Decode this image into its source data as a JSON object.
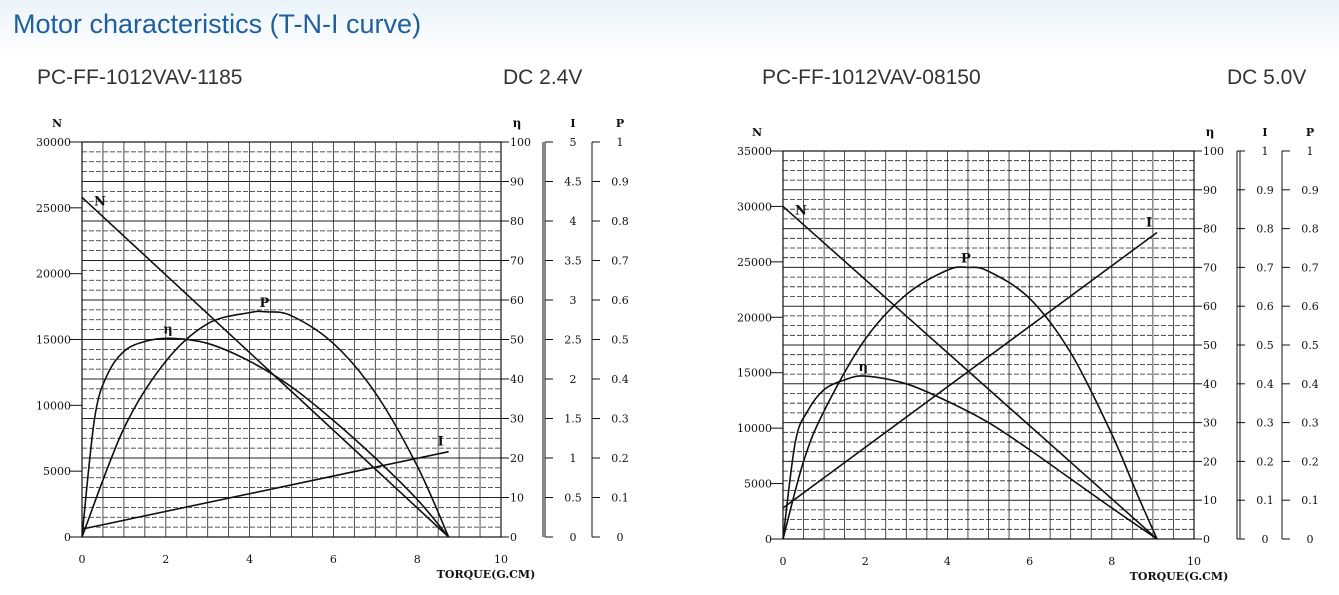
{
  "page": {
    "title": "Motor characteristics (T-N-I curve)"
  },
  "charts": [
    {
      "model": "PC-FF-1012VAV-1185",
      "voltage": "DC 2.4V"
    },
    {
      "model": "PC-FF-1012VAV-08150",
      "voltage": "DC 5.0V"
    }
  ],
  "chart_data": [
    {
      "type": "line",
      "title": "PC-FF-1012VAV-1185",
      "subtitle": "DC 2.4V",
      "xlabel": "TORQUE(G.CM)",
      "x_ticks": [
        0,
        2,
        4,
        6,
        8,
        10
      ],
      "xlim": [
        0,
        10
      ],
      "axes": {
        "N": {
          "label": "N",
          "ticks": [
            0,
            5000,
            10000,
            15000,
            20000,
            25000,
            30000
          ],
          "ylim": [
            0,
            30000
          ]
        },
        "eta": {
          "label": "η",
          "ticks": [
            "0",
            "10",
            "20",
            "30",
            "40",
            "50",
            "60",
            "70",
            "80",
            "90",
            "100"
          ],
          "ylim": [
            0,
            100
          ]
        },
        "I": {
          "label": "I",
          "ticks": [
            "0",
            "0.5",
            "1",
            "1.5",
            "2",
            "2.5",
            "3",
            "3.5",
            "4",
            "4.5",
            "5"
          ],
          "ylim": [
            0,
            5
          ]
        },
        "P": {
          "label": "P",
          "ticks": [
            "0",
            "0.1",
            "0.2",
            "0.3",
            "0.4",
            "0.5",
            "0.6",
            "0.7",
            "0.8",
            "0.9",
            "1"
          ],
          "ylim": [
            0,
            1
          ]
        }
      },
      "series": [
        {
          "name": "N",
          "axis": "N",
          "x": [
            0,
            8.75
          ],
          "y": [
            25800,
            0
          ]
        },
        {
          "name": "η",
          "axis": "eta",
          "x": [
            0,
            0.3,
            0.6,
            1.0,
            1.5,
            2.1,
            3.0,
            4.0,
            5.0,
            6.0,
            7.0,
            8.0,
            8.75
          ],
          "y": [
            0,
            30,
            41,
            47,
            49.5,
            50.3,
            49,
            44.5,
            38,
            29.5,
            20,
            9.5,
            0
          ]
        },
        {
          "name": "P",
          "axis": "P",
          "x": [
            0,
            1.0,
            2.0,
            3.0,
            4.0,
            4.4,
            5.0,
            6.0,
            7.0,
            8.0,
            8.75
          ],
          "y": [
            0,
            0.275,
            0.445,
            0.54,
            0.568,
            0.57,
            0.56,
            0.49,
            0.365,
            0.18,
            0
          ]
        },
        {
          "name": "I",
          "axis": "I",
          "x": [
            0,
            8.75
          ],
          "y": [
            0.1,
            1.08
          ]
        }
      ]
    },
    {
      "type": "line",
      "title": "PC-FF-1012VAV-08150",
      "subtitle": "DC 5.0V",
      "xlabel": "TORQUE(G.CM)",
      "x_ticks": [
        0,
        2,
        4,
        6,
        8,
        10
      ],
      "xlim": [
        0,
        10
      ],
      "axes": {
        "N": {
          "label": "N",
          "ticks": [
            0,
            5000,
            10000,
            15000,
            20000,
            25000,
            30000,
            35000
          ],
          "ylim": [
            0,
            35000
          ]
        },
        "eta": {
          "label": "η",
          "ticks": [
            "0",
            "10",
            "20",
            "30",
            "40",
            "50",
            "60",
            "70",
            "80",
            "90",
            "100"
          ],
          "ylim": [
            0,
            100
          ]
        },
        "I": {
          "label": "I",
          "ticks": [
            "0",
            "0.1",
            "0.2",
            "0.3",
            "0.4",
            "0.5",
            "0.6",
            "0.7",
            "0.8",
            "0.9",
            "1"
          ],
          "ylim": [
            0,
            1
          ]
        },
        "P": {
          "label": "P",
          "ticks": [
            "0",
            "0.1",
            "0.2",
            "0.3",
            "0.4",
            "0.5",
            "0.6",
            "0.7",
            "0.8",
            "0.9",
            "1"
          ],
          "ylim": [
            0,
            1
          ]
        }
      },
      "series": [
        {
          "name": "N",
          "axis": "N",
          "x": [
            0,
            9.1
          ],
          "y": [
            30000,
            0
          ]
        },
        {
          "name": "η",
          "axis": "eta",
          "x": [
            0,
            0.3,
            0.6,
            1.0,
            1.5,
            2.0,
            3.0,
            4.0,
            5.0,
            6.0,
            7.0,
            8.0,
            9.1
          ],
          "y": [
            0,
            25,
            33,
            38.5,
            41,
            42,
            40,
            35.5,
            30,
            23,
            15.5,
            8,
            0
          ]
        },
        {
          "name": "P",
          "axis": "P",
          "x": [
            0,
            0.5,
            1.0,
            2.0,
            3.0,
            4.0,
            4.5,
            5.0,
            6.0,
            7.0,
            8.0,
            8.6,
            9.1
          ],
          "y": [
            0,
            0.2,
            0.33,
            0.515,
            0.63,
            0.693,
            0.7,
            0.69,
            0.62,
            0.48,
            0.27,
            0.12,
            0
          ]
        },
        {
          "name": "I",
          "axis": "I",
          "x": [
            0,
            9.1
          ],
          "y": [
            0.08,
            0.79
          ]
        }
      ]
    }
  ]
}
